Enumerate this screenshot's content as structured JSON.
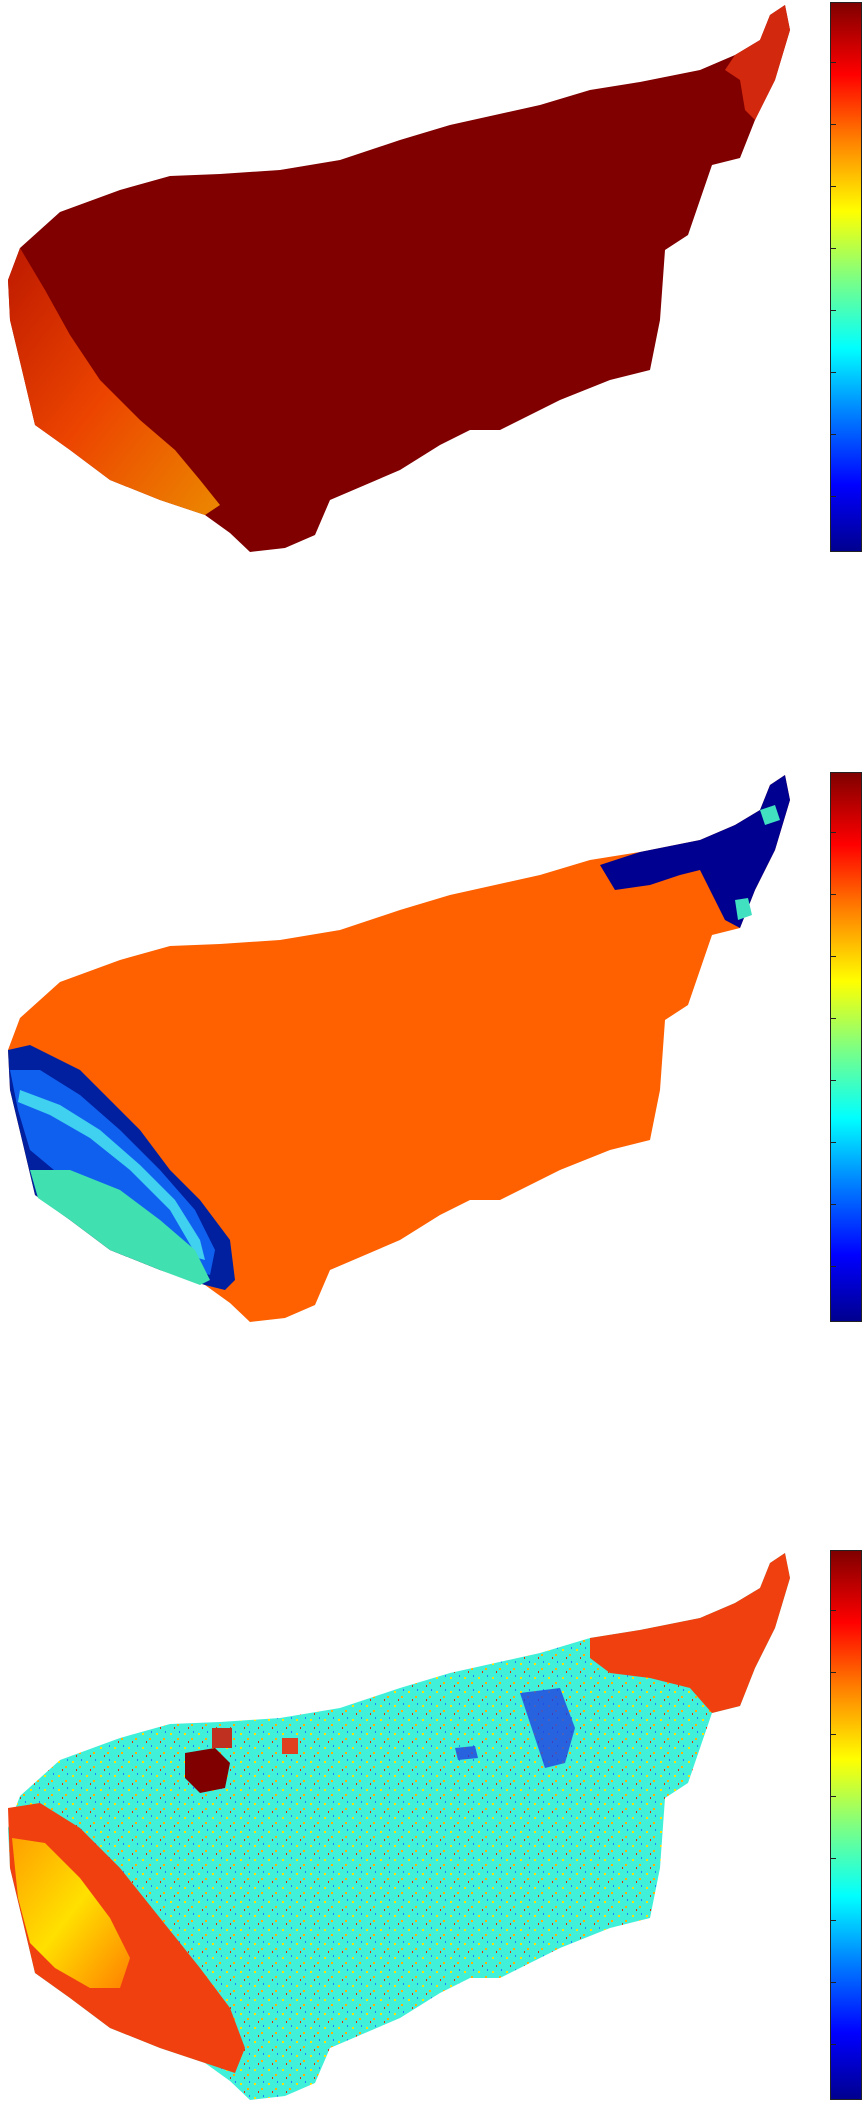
{
  "panels": [
    {
      "name": "panel-1",
      "colormap": "jet",
      "colorbar_ticks": 9,
      "dominant_color": "#800000"
    },
    {
      "name": "panel-2",
      "colormap": "jet",
      "colorbar_ticks": 9,
      "dominant_color": "#ff6000"
    },
    {
      "name": "panel-3",
      "colormap": "jet",
      "colorbar_ticks": 9,
      "dominant_color": "#40f0d8"
    }
  ]
}
